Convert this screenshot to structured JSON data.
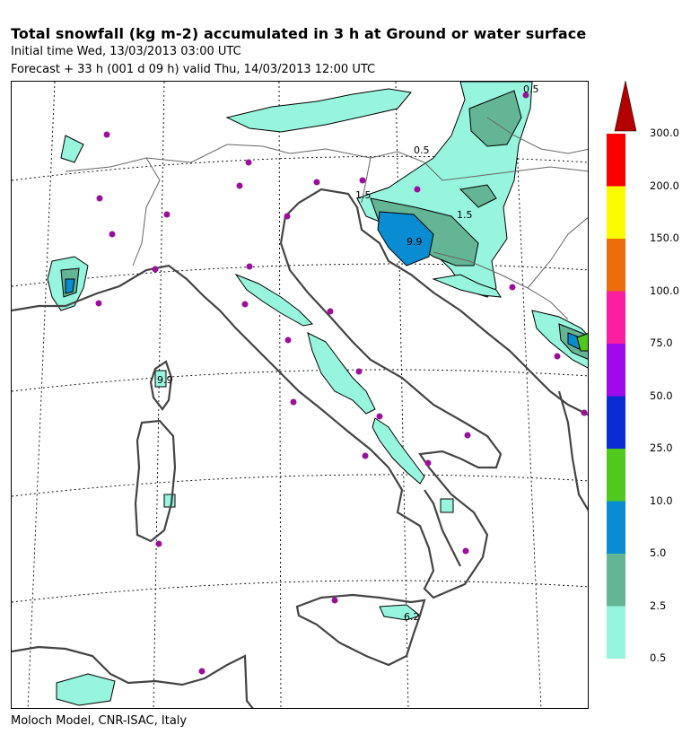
{
  "header": {
    "title": "Total snowfall (kg m-2) accumulated in   3 h at Ground or water surface",
    "initial_time": "Initial time  Wed, 13/03/2013  03:00 UTC",
    "forecast": "Forecast  +  33 h  (001 d 09 h)  valid Thu, 14/03/2013 12:00 UTC"
  },
  "credit": "Moloch Model, CNR-ISAC, Italy",
  "legend": {
    "levels": [
      {
        "label": "0.5",
        "color": "#96f5dc"
      },
      {
        "label": "2.5",
        "color": "#64b496"
      },
      {
        "label": "5.0",
        "color": "#0a8cd2"
      },
      {
        "label": "10.0",
        "color": "#50c81e"
      },
      {
        "label": "25.0",
        "color": "#0a2dd2"
      },
      {
        "label": "50.0",
        "color": "#a00aeb"
      },
      {
        "label": "75.0",
        "color": "#fa1ea0"
      },
      {
        "label": "100.0",
        "color": "#eb6e0a"
      },
      {
        "label": "150.0",
        "color": "#fafa00"
      },
      {
        "label": "200.0",
        "color": "#fa0000"
      },
      {
        "label": "300.0",
        "color": "#b40000"
      }
    ]
  },
  "map": {
    "contour_labels": [
      "9.9",
      "9.9",
      "1.5",
      "1.5",
      "6.2",
      "0.5",
      "0.5"
    ]
  }
}
